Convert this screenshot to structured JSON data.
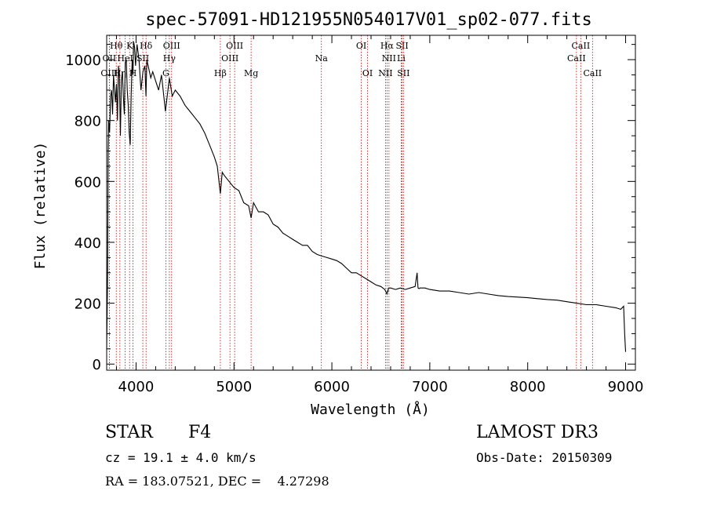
{
  "chart_data": {
    "type": "line",
    "title": "spec-57091-HD121955N054017V01_sp02-077.fits",
    "xlabel": "Wavelength (Å)",
    "ylabel": "Flux (relative)",
    "xlim": [
      3700,
      9100
    ],
    "ylim": [
      -20,
      1080
    ],
    "x_ticks": [
      4000,
      5000,
      6000,
      7000,
      8000,
      9000
    ],
    "y_ticks": [
      0,
      200,
      400,
      600,
      800,
      1000
    ],
    "grid": false,
    "series": [
      {
        "name": "Flux",
        "x": [
          3700,
          3710,
          3715,
          3720,
          3730,
          3740,
          3750,
          3760,
          3770,
          3780,
          3790,
          3800,
          3810,
          3820,
          3830,
          3840,
          3850,
          3860,
          3870,
          3880,
          3890,
          3900,
          3910,
          3920,
          3930,
          3940,
          3950,
          3960,
          3968,
          3975,
          3985,
          3995,
          4010,
          4030,
          4050,
          4070,
          4090,
          4101,
          4110,
          4130,
          4150,
          4170,
          4200,
          4230,
          4260,
          4300,
          4340,
          4370,
          4400,
          4450,
          4500,
          4550,
          4600,
          4650,
          4700,
          4750,
          4800,
          4830,
          4861,
          4880,
          4900,
          4950,
          5000,
          5050,
          5100,
          5150,
          5175,
          5200,
          5250,
          5300,
          5350,
          5400,
          5450,
          5500,
          5550,
          5600,
          5650,
          5700,
          5750,
          5800,
          5850,
          5895,
          5950,
          6000,
          6050,
          6100,
          6150,
          6200,
          6250,
          6300,
          6350,
          6400,
          6450,
          6500,
          6540,
          6563,
          6580,
          6600,
          6650,
          6700,
          6750,
          6800,
          6850,
          6870,
          6880,
          6890,
          6900,
          6950,
          7000,
          7100,
          7200,
          7300,
          7400,
          7500,
          7600,
          7700,
          7800,
          7900,
          8000,
          8100,
          8200,
          8300,
          8400,
          8500,
          8600,
          8700,
          8800,
          8900,
          8950,
          8980,
          8990,
          9000
        ],
        "y": [
          50,
          300,
          700,
          800,
          760,
          880,
          900,
          820,
          950,
          900,
          860,
          920,
          800,
          980,
          940,
          750,
          930,
          960,
          880,
          820,
          990,
          1000,
          900,
          850,
          760,
          720,
          880,
          1000,
          950,
          1060,
          1040,
          980,
          1050,
          1000,
          900,
          960,
          980,
          880,
          1000,
          970,
          940,
          960,
          930,
          900,
          950,
          830,
          940,
          880,
          900,
          880,
          850,
          830,
          810,
          790,
          760,
          720,
          680,
          650,
          560,
          630,
          620,
          600,
          580,
          570,
          530,
          520,
          480,
          530,
          500,
          500,
          490,
          460,
          450,
          430,
          420,
          410,
          400,
          390,
          390,
          370,
          360,
          355,
          350,
          345,
          340,
          330,
          315,
          300,
          300,
          290,
          280,
          270,
          260,
          255,
          245,
          230,
          250,
          250,
          245,
          250,
          245,
          250,
          255,
          300,
          250,
          248,
          250,
          250,
          245,
          240,
          240,
          235,
          230,
          235,
          230,
          225,
          222,
          220,
          218,
          215,
          212,
          210,
          205,
          200,
          195,
          195,
          190,
          185,
          180,
          190,
          100,
          40
        ]
      }
    ],
    "line_markers": [
      {
        "name": "Hθ",
        "wavelength": 3798,
        "row": 1
      },
      {
        "name": "OII",
        "wavelength": 3727,
        "row": 2
      },
      {
        "name": "OIII",
        "wavelength": 3727,
        "row": 3
      },
      {
        "name": "HeI",
        "wavelength": 3889,
        "row": 2
      },
      {
        "name": "Hη",
        "wavelength": 3835,
        "row": 3
      },
      {
        "name": "K",
        "wavelength": 3934,
        "row": 1
      },
      {
        "name": "SII",
        "wavelength": 4069,
        "row": 2
      },
      {
        "name": "H",
        "wavelength": 3969,
        "row": 3
      },
      {
        "name": "Hδ",
        "wavelength": 4102,
        "row": 1
      },
      {
        "name": "OIII",
        "wavelength": 4363,
        "row": 1
      },
      {
        "name": "Hγ",
        "wavelength": 4340,
        "row": 2
      },
      {
        "name": "G",
        "wavelength": 4304,
        "row": 3
      },
      {
        "name": "OIII",
        "wavelength": 5007,
        "row": 1
      },
      {
        "name": "OIII",
        "wavelength": 4959,
        "row": 2
      },
      {
        "name": "Hβ",
        "wavelength": 4861,
        "row": 3
      },
      {
        "name": "Mg",
        "wavelength": 5175,
        "row": 3
      },
      {
        "name": "Na",
        "wavelength": 5893,
        "row": 2
      },
      {
        "name": "OI",
        "wavelength": 6300,
        "row": 1
      },
      {
        "name": "OI",
        "wavelength": 6364,
        "row": 3
      },
      {
        "name": "Hα",
        "wavelength": 6563,
        "row": 1
      },
      {
        "name": "NII",
        "wavelength": 6583,
        "row": 2
      },
      {
        "name": "NII",
        "wavelength": 6548,
        "row": 3
      },
      {
        "name": "SII",
        "wavelength": 6717,
        "row": 1
      },
      {
        "name": "Li",
        "wavelength": 6708,
        "row": 2
      },
      {
        "name": "SII",
        "wavelength": 6731,
        "row": 3
      },
      {
        "name": "CaII",
        "wavelength": 8542,
        "row": 1
      },
      {
        "name": "CaII",
        "wavelength": 8498,
        "row": 2
      },
      {
        "name": "CaII",
        "wavelength": 8662,
        "row": 3
      }
    ]
  },
  "info": {
    "object_class": "STAR",
    "subclass": "F4",
    "survey": "LAMOST DR3",
    "redshift": "cz = 19.1 ± 4.0 km/s",
    "obs_date": "Obs-Date: 20150309",
    "coords": "RA = 183.07521, DEC =    4.27298",
    "line_color": "#000000",
    "marker_color": "#cc0000"
  }
}
